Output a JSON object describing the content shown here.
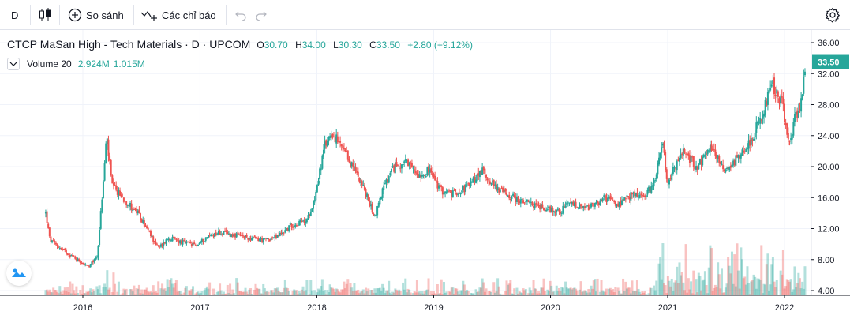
{
  "toolbar": {
    "interval": "D",
    "compare_label": "So sánh",
    "indicators_label": "Các chỉ báo",
    "icons": [
      "candlestick-icon",
      "plus-circle-icon",
      "indicator-icon",
      "undo-icon",
      "redo-icon",
      "gear-icon"
    ]
  },
  "legend": {
    "title": "CTCP MaSan High - Tech Materials · D · UPCOM",
    "open_label": "O",
    "open": "30.70",
    "high_label": "H",
    "high": "34.00",
    "low_label": "L",
    "low": "30.30",
    "close_label": "C",
    "close": "33.50",
    "change": "+2.80 (+9.12%)",
    "color": "#26a69a"
  },
  "volume_legend": {
    "name": "Volume 20",
    "value1": "2.924M",
    "value2": "1.015M"
  },
  "last_price_label": "33.50",
  "colors": {
    "up": "#26a69a",
    "down": "#ef5350",
    "price_tag": "#26a69a",
    "grid": "#f0f3fa"
  },
  "chart_data": {
    "type": "candlestick",
    "y_ticks": [
      "36.00",
      "32.00",
      "28.00",
      "24.00",
      "20.00",
      "16.00",
      "12.00",
      "8.00",
      "4.00"
    ],
    "ylim": [
      4,
      36
    ],
    "x_ticks": [
      "2016",
      "2017",
      "2018",
      "2019",
      "2020",
      "2021",
      "2022"
    ],
    "xlim": [
      "2015-09-01",
      "2022-03-15"
    ],
    "last_price": 33.5,
    "price_path": [
      [
        "2015-09-07",
        14.0
      ],
      [
        "2015-09-20",
        10.5
      ],
      [
        "2015-11-01",
        9.2
      ],
      [
        "2015-12-15",
        8.0
      ],
      [
        "2016-01-20",
        7.0
      ],
      [
        "2016-02-15",
        8.5
      ],
      [
        "2016-03-05",
        18.0
      ],
      [
        "2016-03-15",
        24.0
      ],
      [
        "2016-04-01",
        17.5
      ],
      [
        "2016-05-15",
        15.5
      ],
      [
        "2016-06-20",
        14.0
      ],
      [
        "2016-07-25",
        11.5
      ],
      [
        "2016-08-25",
        9.5
      ],
      [
        "2016-09-25",
        10.8
      ],
      [
        "2016-11-10",
        10.2
      ],
      [
        "2016-12-20",
        9.8
      ],
      [
        "2017-01-25",
        11.0
      ],
      [
        "2017-03-01",
        11.5
      ],
      [
        "2017-04-15",
        11.2
      ],
      [
        "2017-06-01",
        10.8
      ],
      [
        "2017-07-20",
        10.5
      ],
      [
        "2017-09-01",
        11.0
      ],
      [
        "2017-10-15",
        12.5
      ],
      [
        "2017-12-01",
        13.0
      ],
      [
        "2017-12-25",
        16.0
      ],
      [
        "2018-01-25",
        22.5
      ],
      [
        "2018-02-15",
        24.5
      ],
      [
        "2018-04-01",
        21.5
      ],
      [
        "2018-05-15",
        18.5
      ],
      [
        "2018-07-01",
        13.5
      ],
      [
        "2018-07-25",
        17.0
      ],
      [
        "2018-09-01",
        20.0
      ],
      [
        "2018-10-01",
        20.5
      ],
      [
        "2018-11-15",
        19.0
      ],
      [
        "2018-12-20",
        19.5
      ],
      [
        "2019-01-20",
        17.0
      ],
      [
        "2019-03-01",
        16.5
      ],
      [
        "2019-04-20",
        17.5
      ],
      [
        "2019-06-01",
        19.5
      ],
      [
        "2019-07-10",
        17.5
      ],
      [
        "2019-08-15",
        16.5
      ],
      [
        "2019-10-01",
        15.5
      ],
      [
        "2019-11-15",
        15.0
      ],
      [
        "2019-12-30",
        14.5
      ],
      [
        "2020-02-01",
        14.2
      ],
      [
        "2020-03-01",
        15.3
      ],
      [
        "2020-04-10",
        14.5
      ],
      [
        "2020-05-20",
        15.0
      ],
      [
        "2020-06-20",
        16.0
      ],
      [
        "2020-08-01",
        15.0
      ],
      [
        "2020-09-15",
        16.5
      ],
      [
        "2020-10-20",
        16.0
      ],
      [
        "2020-11-20",
        18.0
      ],
      [
        "2020-12-15",
        23.5
      ],
      [
        "2020-12-30",
        18.0
      ],
      [
        "2021-01-20",
        19.5
      ],
      [
        "2021-02-20",
        22.0
      ],
      [
        "2021-04-01",
        20.0
      ],
      [
        "2021-05-20",
        22.5
      ],
      [
        "2021-07-01",
        19.5
      ],
      [
        "2021-08-15",
        21.5
      ],
      [
        "2021-09-25",
        24.0
      ],
      [
        "2021-10-25",
        27.0
      ],
      [
        "2021-11-25",
        30.5
      ],
      [
        "2021-12-25",
        28.0
      ],
      [
        "2022-01-15",
        23.0
      ],
      [
        "2022-02-01",
        26.0
      ],
      [
        "2022-02-25",
        28.5
      ],
      [
        "2022-03-07",
        33.5
      ]
    ]
  }
}
